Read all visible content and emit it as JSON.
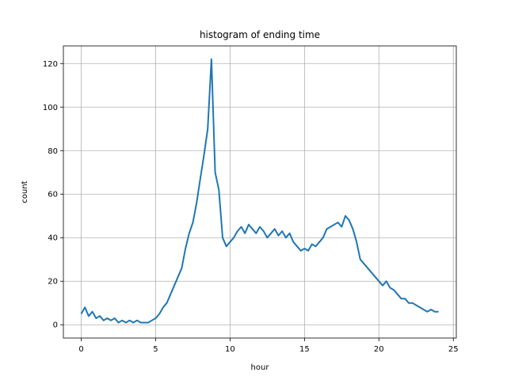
{
  "chart_data": {
    "type": "line",
    "title": "histogram of ending time",
    "xlabel": "hour",
    "ylabel": "count",
    "xlim": [
      -1.2,
      25.2
    ],
    "ylim": [
      -6.1,
      128.1
    ],
    "xticks": [
      0,
      5,
      10,
      15,
      20,
      25
    ],
    "yticks": [
      0,
      20,
      40,
      60,
      80,
      100,
      120
    ],
    "grid": true,
    "legend": "none",
    "line_color": "#1f77b4",
    "series": [
      {
        "x": [
          0.0,
          0.25,
          0.5,
          0.75,
          1.0,
          1.25,
          1.5,
          1.75,
          2.0,
          2.25,
          2.5,
          2.75,
          3.0,
          3.25,
          3.5,
          3.75,
          4.0,
          4.25,
          4.5,
          4.75,
          5.0,
          5.25,
          5.5,
          5.75,
          6.0,
          6.25,
          6.5,
          6.75,
          7.0,
          7.25,
          7.5,
          7.75,
          8.0,
          8.25,
          8.5,
          8.75,
          9.0,
          9.25,
          9.5,
          9.75,
          10.0,
          10.25,
          10.5,
          10.75,
          11.0,
          11.25,
          11.5,
          11.75,
          12.0,
          12.25,
          12.5,
          12.75,
          13.0,
          13.25,
          13.5,
          13.75,
          14.0,
          14.25,
          14.5,
          14.75,
          15.0,
          15.25,
          15.5,
          15.75,
          16.0,
          16.25,
          16.5,
          16.75,
          17.0,
          17.25,
          17.5,
          17.75,
          18.0,
          18.25,
          18.5,
          18.75,
          19.0,
          19.25,
          19.5,
          19.75,
          20.0,
          20.25,
          20.5,
          20.75,
          21.0,
          21.25,
          21.5,
          21.75,
          22.0,
          22.25,
          22.5,
          22.75,
          23.0,
          23.25,
          23.5,
          23.75,
          24.0
        ],
        "y": [
          5,
          8,
          4,
          6,
          3,
          4,
          2,
          3,
          2,
          3,
          1,
          2,
          1,
          2,
          1,
          2,
          1,
          1,
          1,
          2,
          3,
          5,
          8,
          10,
          14,
          18,
          22,
          26,
          35,
          42,
          47,
          56,
          67,
          78,
          90,
          122,
          70,
          62,
          40,
          36,
          38,
          40,
          43,
          45,
          42,
          46,
          44,
          42,
          45,
          43,
          40,
          42,
          44,
          41,
          43,
          40,
          42,
          38,
          36,
          34,
          35,
          34,
          37,
          36,
          38,
          40,
          44,
          45,
          46,
          47,
          45,
          50,
          48,
          44,
          38,
          30,
          28,
          26,
          24,
          22,
          20,
          18,
          20,
          17,
          16,
          14,
          12,
          12,
          10,
          10,
          9,
          8,
          7,
          6,
          7,
          6,
          6
        ]
      }
    ]
  }
}
